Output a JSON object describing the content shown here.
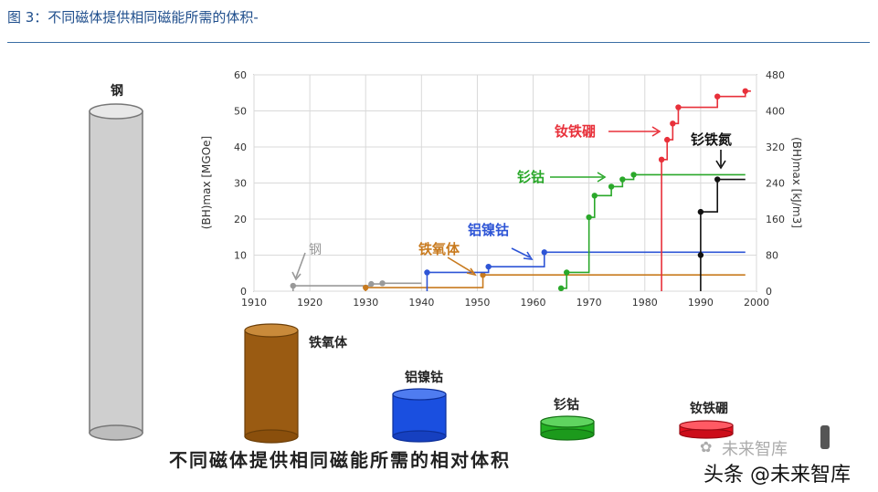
{
  "header": {
    "caption": "图 3：不同磁体提供相同磁能所需的体积-"
  },
  "cylinders": {
    "steel": "钢",
    "ferrite": "铁氧体",
    "alnico": "铝镍钴",
    "smco": "钐钴",
    "ndfeb": "钕铁硼"
  },
  "footer": {
    "title": "不同磁体提供相同磁能所需的相对体积",
    "watermark_top": "未来智库",
    "watermark_bottom": "头条 @未来智库"
  },
  "chart_data": {
    "type": "line",
    "xlabel": "",
    "ylabel": "(BH)max [MGOe]",
    "ylabel_right": "(BH)max [kJ/m3]",
    "xlim": [
      1910,
      2000
    ],
    "ylim": [
      0,
      60
    ],
    "ylim_right": [
      0,
      480
    ],
    "x_ticks": [
      "1910",
      "1920",
      "1930",
      "1940",
      "1950",
      "1960",
      "1970",
      "1980",
      "1990",
      "2000"
    ],
    "y_ticks": [
      "0",
      "10",
      "20",
      "30",
      "40",
      "50",
      "60"
    ],
    "y_ticks_right": [
      "0",
      "80",
      "160",
      "240",
      "320",
      "400",
      "480"
    ],
    "grid": true,
    "series": [
      {
        "name": "钢",
        "color": "#999999",
        "x": [
          1917,
          1931,
          1933
        ],
        "y": [
          1.5,
          2.0,
          2.2
        ],
        "end": 1940
      },
      {
        "name": "铁氧体",
        "color": "#c87a1e",
        "x": [
          1930,
          1951
        ],
        "y": [
          1.0,
          4.5
        ],
        "end": 1998
      },
      {
        "name": "铝镍钴",
        "color": "#2e55d6",
        "x": [
          1941,
          1952,
          1962
        ],
        "y": [
          5.2,
          6.8,
          10.8
        ],
        "end": 1998
      },
      {
        "name": "钐钴",
        "color": "#2aa82a",
        "x": [
          1965,
          1966,
          1970,
          1971,
          1974,
          1976,
          1978
        ],
        "y": [
          0.8,
          5.2,
          20.5,
          26.5,
          29.0,
          31.0,
          32.3
        ],
        "end": 1998
      },
      {
        "name": "钕铁硼",
        "color": "#e8303a",
        "x": [
          1983,
          1984,
          1985,
          1986,
          1993,
          1998
        ],
        "y": [
          36.5,
          42.0,
          46.5,
          51.0,
          54.0,
          55.5
        ],
        "end": 1999
      },
      {
        "name": "钐铁氮",
        "color": "#111111",
        "x": [
          1990,
          1990,
          1993
        ],
        "y": [
          10.0,
          22.0,
          31.0
        ],
        "end": 1998
      }
    ]
  }
}
